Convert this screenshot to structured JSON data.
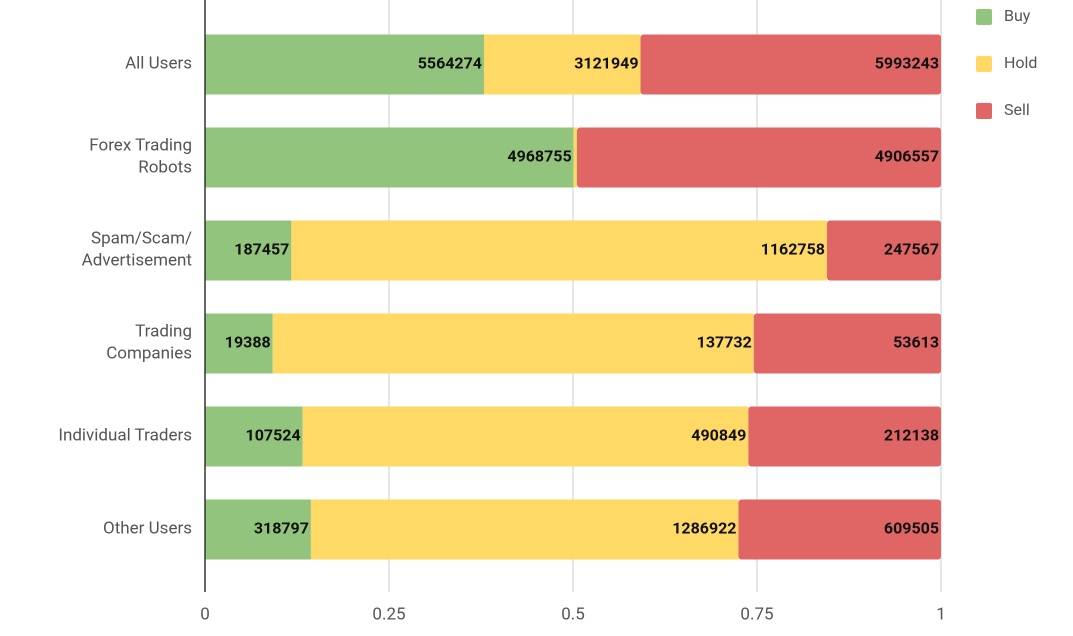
{
  "chart_data": {
    "type": "bar",
    "orientation": "horizontal",
    "stacked": "percent",
    "categories": [
      "All Users",
      "Forex Trading\nRobots",
      "Spam/Scam/\nAdvertisement",
      "Trading\nCompanies",
      "Individual Traders",
      "Other Users"
    ],
    "series": [
      {
        "name": "Buy",
        "color": "#93c47d",
        "values": [
          5564274,
          4968755,
          187457,
          19388,
          107524,
          318797
        ]
      },
      {
        "name": "Hold",
        "color": "#ffd966",
        "values": [
          3121949,
          44340,
          1162758,
          137732,
          490849,
          1286922
        ]
      },
      {
        "name": "Sell",
        "color": "#e06666",
        "values": [
          5993243,
          4906557,
          247567,
          53613,
          212138,
          609505
        ]
      }
    ],
    "xlim": [
      0,
      1
    ],
    "xticks": [
      0,
      0.25,
      0.5,
      0.75,
      1
    ],
    "legend": "right"
  }
}
